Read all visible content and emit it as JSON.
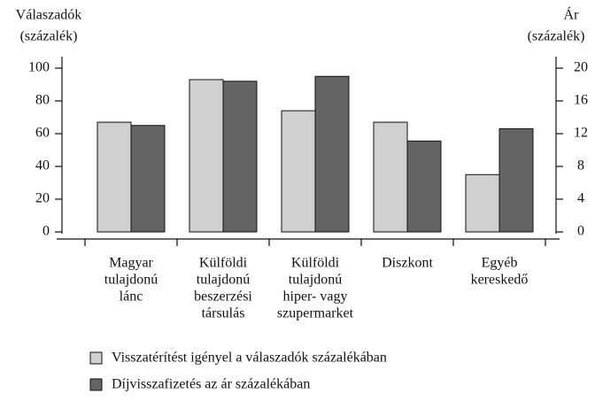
{
  "chart_data": {
    "type": "bar",
    "y_label": [
      "Válaszadók",
      "(százalék)"
    ],
    "y2_label": [
      "Ár",
      "(százalék)"
    ],
    "categories": [
      [
        "Magyar",
        "tulajdonú",
        "lánc"
      ],
      [
        "Külföldi",
        "tulajdonú",
        "beszerzési",
        "társulás"
      ],
      [
        "Külföldi",
        "tulajdonú",
        "hiper- vagy",
        "szupermarket"
      ],
      [
        "Diszkont"
      ],
      [
        "Egyéb",
        "kereskedő"
      ]
    ],
    "series": [
      {
        "name": "Visszatérítést igényel a válaszadók százalékában",
        "color": "#d0d0d0",
        "values": [
          67,
          93,
          74,
          67,
          35
        ]
      },
      {
        "name": "Díjvisszafizetés az ár százalékában",
        "color": "#646464",
        "axis": "y2",
        "values": [
          13.0,
          18.4,
          19.0,
          11.1,
          12.6
        ]
      }
    ],
    "ylim": [
      0,
      100
    ],
    "yticks": [
      0,
      20,
      40,
      60,
      80,
      100
    ],
    "y2lim": [
      0,
      20
    ],
    "y2ticks": [
      0,
      4,
      8,
      12,
      16,
      20
    ]
  }
}
